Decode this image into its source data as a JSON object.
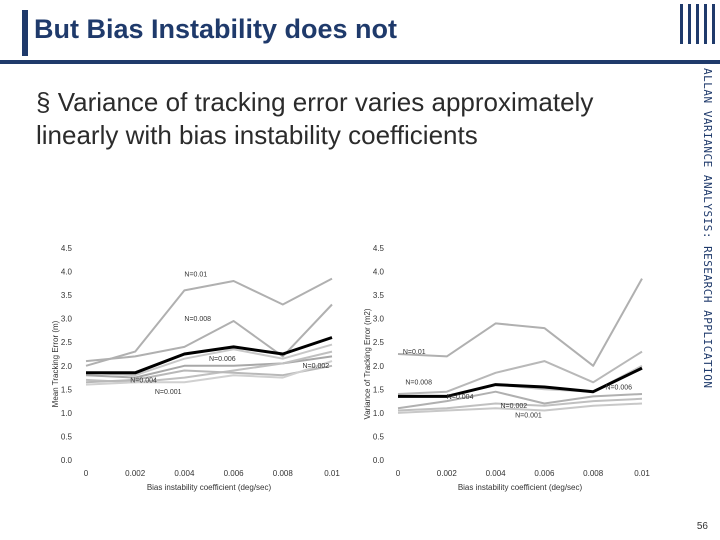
{
  "slide": {
    "title": "But Bias Instability does not",
    "bullet_symbol": "§",
    "bullet_text": "Variance of tracking error varies approximately linearly with bias instability coefficients",
    "side_text": "ALLAN VARIANCE ANALYSIS: RESEARCH APPLICATION",
    "page_number": "56",
    "accent_color": "#1f3a6b"
  },
  "chart_data": [
    {
      "type": "line",
      "title": "",
      "xlabel": "Bias instability coefficient (deg/sec)",
      "ylabel": "Mean Tracking Error (m)",
      "x": [
        0,
        0.002,
        0.004,
        0.006,
        0.008,
        0.01
      ],
      "x_tick_labels": [
        "0",
        "0.002",
        "0.004",
        "0.006",
        "0.008",
        "0.01"
      ],
      "y_tick_labels": [
        "0.0",
        "0.5",
        "1.0",
        "1.5",
        "2.0",
        "2.5",
        "3.0",
        "3.5",
        "4.0",
        "4.5"
      ],
      "xlim": [
        0,
        0.01
      ],
      "ylim": [
        0,
        4.5
      ],
      "series": [
        {
          "name": "N=0.01",
          "x": [
            0,
            0.002,
            0.004,
            0.006,
            0.008,
            0.01
          ],
          "values": [
            2.0,
            2.3,
            3.6,
            3.8,
            3.3,
            3.85
          ],
          "color": "#b0b0b0",
          "width": 2
        },
        {
          "name": "N=0.008",
          "x": [
            0,
            0.002,
            0.004,
            0.006,
            0.008,
            0.01
          ],
          "values": [
            2.1,
            2.2,
            2.4,
            2.95,
            2.2,
            3.3
          ],
          "color": "#b0b0b0",
          "width": 2
        },
        {
          "name": "N=0.006",
          "x": [
            0,
            0.002,
            0.004,
            0.006,
            0.008,
            0.01
          ],
          "values": [
            1.85,
            1.8,
            2.15,
            2.35,
            2.15,
            2.45
          ],
          "color": "#c8c8c8",
          "width": 2
        },
        {
          "name": "N=0.002",
          "x": [
            0,
            0.002,
            0.004,
            0.006,
            0.008,
            0.01
          ],
          "values": [
            1.8,
            1.75,
            2.0,
            2.0,
            2.05,
            2.2
          ],
          "color": "#a8a8a8",
          "width": 2
        },
        {
          "name": "N=0.004",
          "x": [
            0,
            0.002,
            0.004,
            0.006,
            0.008,
            0.01
          ],
          "values": [
            1.7,
            1.65,
            1.75,
            1.9,
            2.05,
            2.3
          ],
          "color": "#c0c0c0",
          "width": 2
        },
        {
          "name": "N=0.001",
          "x": [
            0,
            0.002,
            0.004,
            0.006,
            0.008,
            0.01
          ],
          "values": [
            1.65,
            1.7,
            1.9,
            1.85,
            1.8,
            2.0
          ],
          "color": "#b8b8b8",
          "width": 2
        },
        {
          "name": "",
          "x": [
            0,
            0.002,
            0.004,
            0.006,
            0.008,
            0.01
          ],
          "values": [
            1.6,
            1.65,
            1.65,
            1.8,
            1.75,
            2.1
          ],
          "color": "#d0d0d0",
          "width": 2
        },
        {
          "name": "",
          "x": [
            0,
            0.002,
            0.004,
            0.006,
            0.008,
            0.01
          ],
          "values": [
            1.85,
            1.85,
            2.25,
            2.4,
            2.25,
            2.6
          ],
          "color": "#000000",
          "width": 3
        }
      ],
      "annotations": [
        {
          "text": "N=0.01",
          "x": 0.004,
          "y": 3.9
        },
        {
          "text": "N=0.008",
          "x": 0.004,
          "y": 2.95
        },
        {
          "text": "N=0.006",
          "x": 0.005,
          "y": 2.1
        },
        {
          "text": "N=0.002",
          "x": 0.0088,
          "y": 1.95
        },
        {
          "text": "N=0.004",
          "x": 0.0018,
          "y": 1.65
        },
        {
          "text": "N=0.001",
          "x": 0.0028,
          "y": 1.4
        }
      ]
    },
    {
      "type": "line",
      "title": "",
      "xlabel": "Bias instability coefficient (deg/sec)",
      "ylabel": "Variance of Tracking Error (m2)",
      "x": [
        0,
        0.002,
        0.004,
        0.006,
        0.008,
        0.01
      ],
      "x_tick_labels": [
        "0",
        "0.002",
        "0.004",
        "0.006",
        "0.008",
        "0.01"
      ],
      "y_tick_labels": [
        "0.0",
        "0.5",
        "1.0",
        "1.5",
        "2.0",
        "2.5",
        "3.0",
        "3.5",
        "4.0",
        "4.5"
      ],
      "xlim": [
        0,
        0.01
      ],
      "ylim": [
        0,
        4.5
      ],
      "series": [
        {
          "name": "N=0.01",
          "x": [
            0,
            0.002,
            0.004,
            0.006,
            0.008,
            0.01
          ],
          "values": [
            2.25,
            2.2,
            2.9,
            2.8,
            2.0,
            3.85
          ],
          "color": "#b0b0b0",
          "width": 2
        },
        {
          "name": "N=0.008",
          "x": [
            0,
            0.002,
            0.004,
            0.006,
            0.008,
            0.01
          ],
          "values": [
            1.4,
            1.45,
            1.85,
            2.1,
            1.65,
            2.3
          ],
          "color": "#b8b8b8",
          "width": 2
        },
        {
          "name": "N=0.006",
          "x": [
            0,
            0.002,
            0.004,
            0.006,
            0.008,
            0.01
          ],
          "values": [
            1.35,
            1.35,
            1.6,
            1.5,
            1.45,
            2.0
          ],
          "color": "#c8c8c8",
          "width": 2
        },
        {
          "name": "N=0.004",
          "x": [
            0,
            0.002,
            0.004,
            0.006,
            0.008,
            0.01
          ],
          "values": [
            1.1,
            1.25,
            1.45,
            1.2,
            1.35,
            1.4
          ],
          "color": "#b0b0b0",
          "width": 2
        },
        {
          "name": "N=0.002",
          "x": [
            0,
            0.002,
            0.004,
            0.006,
            0.008,
            0.01
          ],
          "values": [
            1.05,
            1.1,
            1.2,
            1.15,
            1.25,
            1.3
          ],
          "color": "#c0c0c0",
          "width": 2
        },
        {
          "name": "N=0.001",
          "x": [
            0,
            0.002,
            0.004,
            0.006,
            0.008,
            0.01
          ],
          "values": [
            1.0,
            1.05,
            1.1,
            1.05,
            1.15,
            1.2
          ],
          "color": "#c8c8c8",
          "width": 2
        },
        {
          "name": "",
          "x": [
            0,
            0.002,
            0.004,
            0.006,
            0.008,
            0.01
          ],
          "values": [
            1.35,
            1.35,
            1.6,
            1.55,
            1.45,
            1.95
          ],
          "color": "#000000",
          "width": 3
        }
      ],
      "annotations": [
        {
          "text": "N=0.01",
          "x": 0.0002,
          "y": 2.25
        },
        {
          "text": "N=0.008",
          "x": 0.0003,
          "y": 1.6
        },
        {
          "text": "N=0.004",
          "x": 0.002,
          "y": 1.3
        },
        {
          "text": "N=0.006",
          "x": 0.0085,
          "y": 1.5
        },
        {
          "text": "N=0.002",
          "x": 0.0042,
          "y": 1.1
        },
        {
          "text": "N=0.001",
          "x": 0.0048,
          "y": 0.9
        }
      ]
    }
  ]
}
